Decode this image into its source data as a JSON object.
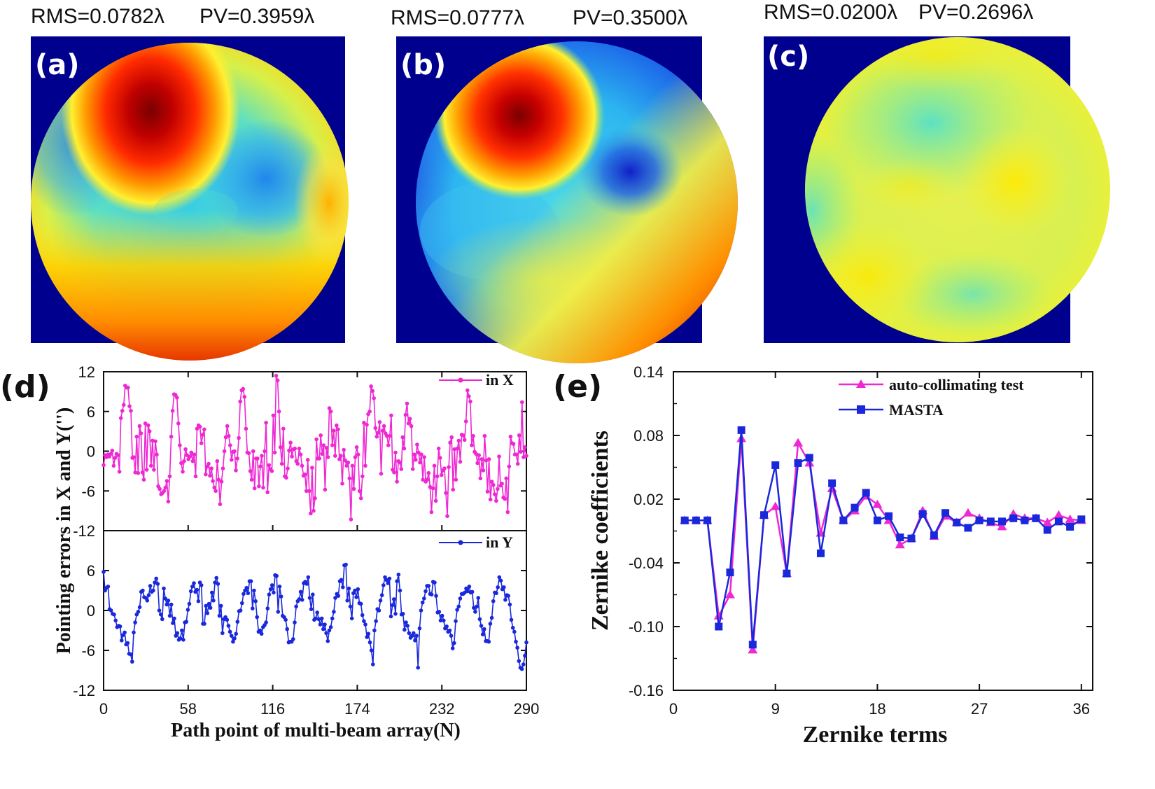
{
  "colors": {
    "magenta": "#ee28d2",
    "blue": "#1a28dc",
    "jet_background": "#00008f"
  },
  "wavefront_maps": [
    {
      "id": "a",
      "label": "(a)",
      "rms_text": "RMS=0.0782λ",
      "pv_text": "PV=0.3959λ",
      "colormap": "jet",
      "description": "wavefront error map panel a"
    },
    {
      "id": "b",
      "label": "(b)",
      "rms_text": "RMS=0.0777λ",
      "pv_text": "PV=0.3500λ",
      "colormap": "jet",
      "description": "wavefront error map panel b"
    },
    {
      "id": "c",
      "label": "(c)",
      "rms_text": "RMS=0.0200λ",
      "pv_text": "PV=0.2696λ",
      "colormap": "jet",
      "description": "wavefront error map panel c"
    }
  ],
  "chart_data": [
    {
      "id": "d",
      "panel_label": "(d)",
      "type": "line",
      "ylabel": "Pointing errors in X and Y('')",
      "xlabel": "Path point of multi-beam array(N)",
      "xlim": [
        0,
        290
      ],
      "x_ticks": [
        0,
        58,
        116,
        174,
        232,
        290
      ],
      "subplots": [
        {
          "name": "in X",
          "legend": "in X",
          "legend_position": "top-right",
          "color": "#ee28d2",
          "ylim": [
            -12,
            12
          ],
          "y_ticks": [
            12,
            6,
            0,
            -6,
            -12
          ],
          "values": [
            -2.1,
            -0.6,
            -0.9,
            -0.5,
            -0.8,
            -0.4,
            0.1,
            -2.2,
            -1.0,
            -0.4,
            -0.6,
            -3.1,
            5.0,
            6.1,
            7.0,
            9.9,
            9.6,
            9.6,
            6.8,
            6.1,
            -1.0,
            -0.9,
            -3.2,
            2.2,
            -3.3,
            3.8,
            2.7,
            -3.2,
            -4.3,
            4.2,
            -2.8,
            3.9,
            3.0,
            -2.2,
            1.6,
            -2.8,
            1.5,
            -0.5,
            -5.3,
            -5.7,
            -6.5,
            -6.3,
            -6.0,
            -5.5,
            -4.5,
            -7.6,
            -3.8,
            2.2,
            6.1,
            8.6,
            8.5,
            8.1,
            4.2,
            0.9,
            -1.8,
            -3.1,
            -1.5,
            0.3,
            -0.6,
            -1.2,
            -0.8,
            -0.2,
            -1.5,
            -0.5,
            -3.8,
            3.4,
            3.9,
            3.7,
            1.2,
            2.5,
            3.3,
            -3.5,
            -2.3,
            -1.9,
            -3.7,
            -2.6,
            -4.5,
            -5.5,
            -6.0,
            -1.5,
            -4.3,
            -8.0,
            -4.6,
            -2.6,
            0.0,
            2.1,
            3.8,
            2.3,
            0.9,
            -1.3,
            -0.1,
            0.0,
            -2.9,
            -1.1,
            2.0,
            7.5,
            9.2,
            9.4,
            8.2,
            3.4,
            -0.2,
            -0.3,
            -3.0,
            -4.3,
            0.0,
            -5.6,
            -1.1,
            -1.1,
            -5.3,
            -2.3,
            -0.7,
            -5.5,
            0.0,
            4.3,
            -6.2,
            -2.1,
            -2.7,
            -3.0,
            5.4,
            -0.2,
            11.4,
            10.7,
            6.0,
            0.6,
            -1.9,
            3.4,
            -3.8,
            -4.0,
            -2.6,
            0.1,
            1.3,
            -0.8,
            0.3,
            0.4,
            -1.5,
            -1.9,
            0.4,
            -0.5,
            -2.2,
            -3.7,
            -3.5,
            -6.0,
            -1.3,
            -6.0,
            -9.4,
            -2.5,
            -9.0,
            -7.1,
            1.8,
            -1.1,
            -1.1,
            2.4,
            -0.4,
            0.9,
            -5.8,
            0.5,
            -0.9,
            6.5,
            6.0,
            0.9,
            3.1,
            -0.7,
            3.9,
            3.3,
            -1.2,
            -0.7,
            -4.9,
            0.2,
            -1.4,
            -2.2,
            -1.7,
            -4.1,
            -10.3,
            -2.2,
            -5.7,
            -0.9,
            0.6,
            -0.5,
            -6.0,
            -7.1,
            -3.8,
            4.3,
            -2.2,
            4.0,
            5.6,
            6.0,
            9.8,
            9.1,
            8.0,
            3.5,
            2.2,
            2.8,
            4.4,
            -3.4,
            3.1,
            3.8,
            2.7,
            2.3,
            0.9,
            2.3,
            5.4,
            -2.8,
            -3.2,
            -0.2,
            -4.6,
            -1.5,
            -1.7,
            -2.7,
            2.1,
            0.4,
            5.5,
            7.2,
            4.2,
            4.9,
            3.8,
            -2.7,
            -0.5,
            -1.3,
            1.0,
            -0.2,
            -1.7,
            -0.5,
            -4.3,
            -0.9,
            -4.6,
            -4.3,
            -3.3,
            -5.4,
            -9.2,
            -5.6,
            -2.2,
            -7.5,
            -3.8,
            0.4,
            -1.0,
            -3.6,
            -2.9,
            -2.6,
            -6.3,
            -9.8,
            -2.4,
            1.3,
            2.1,
            -5.8,
            0.3,
            -4.3,
            0.4,
            1.6,
            -1.6,
            2.5,
            2.4,
            1.7,
            4.5,
            9.2,
            8.3,
            7.5,
            0.9,
            2.3,
            -0.1,
            -0.4,
            -1.8,
            -0.6,
            -4.1,
            -1.2,
            -2.9,
            2.3,
            -1.4,
            -6.1,
            -1.2,
            -7.3,
            -4.6,
            -5.1,
            -6.5,
            -7.5,
            -5.7,
            -0.8,
            -5.2,
            -4.9,
            -7.0,
            -7.2,
            -4.1,
            -9.2,
            -2.3,
            2.2,
            1.2,
            1.1,
            -0.5,
            -0.5,
            -1.9,
            2.4,
            -0.1,
            7.4,
            -0.9,
            0.6,
            -0.7
          ]
        },
        {
          "name": "in Y",
          "legend": "in Y",
          "legend_position": "top-right",
          "color": "#1a28dc",
          "ylim": [
            -12,
            12
          ],
          "y_ticks": [
            6,
            0,
            -6,
            -12
          ],
          "values": [
            5.8,
            3.0,
            3.4,
            3.6,
            0.2,
            0.0,
            -0.5,
            -0.6,
            -1.5,
            -2.5,
            -2.3,
            -2.4,
            -4.5,
            -3.7,
            -3.3,
            -5.1,
            -4.9,
            -6.5,
            -6.6,
            -7.7,
            -3.3,
            -1.8,
            -0.6,
            -0.2,
            0.5,
            2.8,
            3.0,
            2.0,
            1.9,
            1.5,
            2.3,
            3.7,
            2.8,
            3.0,
            4.2,
            4.8,
            4.0,
            0.0,
            -0.6,
            -1.3,
            3.3,
            1.8,
            0.9,
            1.5,
            -0.8,
            0.9,
            -1.9,
            -1.2,
            -3.8,
            -3.4,
            -4.4,
            -4.2,
            -3.0,
            -4.4,
            -1.8,
            -1.7,
            0.1,
            1.0,
            2.9,
            3.6,
            4.1,
            2.8,
            3.1,
            1.4,
            4.2,
            3.8,
            -2.0,
            -2.0,
            0.7,
            -0.4,
            1.0,
            0.4,
            2.7,
            1.5,
            4.2,
            4.9,
            4.0,
            -0.8,
            0.7,
            -3.4,
            -1.3,
            -1.0,
            -1.4,
            -2.3,
            -3.2,
            -3.8,
            -4.7,
            -4.2,
            -3.5,
            -1.7,
            -0.1,
            0.0,
            1.1,
            2.5,
            3.0,
            3.4,
            2.6,
            4.4,
            4.4,
            0.3,
            3.0,
            1.4,
            -1.0,
            -3.2,
            -3.0,
            -3.5,
            -2.5,
            -2.2,
            -1.8,
            0.3,
            2.4,
            3.2,
            3.8,
            2.7,
            5.3,
            5.2,
            -0.2,
            3.6,
            2.1,
            -0.8,
            -1.0,
            -1.4,
            -2.8,
            -4.8,
            -4.7,
            -4.7,
            -4.3,
            -1.8,
            0.6,
            1.4,
            1.7,
            2.8,
            1.6,
            4.1,
            4.3,
            4.0,
            5.0,
            1.9,
            0.2,
            2.4,
            -1.4,
            -1.2,
            -0.3,
            -1.3,
            -2.1,
            -1.2,
            -2.8,
            -2.1,
            -3.4,
            -4.6,
            -3.0,
            -2.5,
            -1.2,
            -0.2,
            1.9,
            2.5,
            2.2,
            4.4,
            4.6,
            3.5,
            6.8,
            6.9,
            1.5,
            3.3,
            0.6,
            -1.2,
            2.6,
            3.0,
            2.0,
            3.2,
            1.1,
            1.0,
            -0.7,
            -1.6,
            -2.1,
            -4.0,
            -3.5,
            -4.8,
            -6.0,
            -8.1,
            -3.0,
            -1.6,
            0.2,
            0.0,
            1.5,
            2.3,
            3.8,
            5.0,
            4.6,
            4.1,
            4.8,
            -0.9,
            0.8,
            1.7,
            -0.5,
            4.4,
            5.4,
            3.0,
            -0.6,
            -0.5,
            -2.9,
            -1.8,
            -2.3,
            -3.4,
            -4.1,
            -3.8,
            -3.4,
            -4.5,
            -3.8,
            -8.6,
            -2.7,
            0.0,
            1.2,
            1.8,
            2.9,
            3.7,
            3.7,
            2.5,
            2.4,
            4.3,
            4.2,
            2.2,
            -0.3,
            -0.2,
            -1.5,
            -0.8,
            -1.5,
            -2.7,
            -2.4,
            -3.2,
            -3.0,
            -3.8,
            -5.7,
            -4.9,
            -1.6,
            0.1,
            0.6,
            1.8,
            2.5,
            2.5,
            2.7,
            3.3,
            2.9,
            3.6,
            2.7,
            2.8,
            0.4,
            -0.2,
            0.6,
            1.9,
            -1.3,
            -2.3,
            -3.6,
            -2.8,
            -4.6,
            -4.6,
            -4.7,
            -2.0,
            -1.1,
            1.4,
            2.7,
            2.6,
            3.5,
            5.0,
            4.5,
            3.2,
            3.5,
            1.6,
            2.3,
            2.2,
            0.9,
            -1.4,
            -2.6,
            -3.2,
            -4.7,
            -5.6,
            -7.6,
            -8.6,
            -8.8,
            -8.1,
            -6.8,
            -4.8
          ]
        }
      ]
    },
    {
      "id": "e",
      "panel_label": "(e)",
      "type": "line",
      "title": "",
      "xlabel": "Zernike terms",
      "ylabel": "Zernike coefficients",
      "xlim": [
        0,
        37
      ],
      "ylim": [
        -0.16,
        0.14
      ],
      "x_ticks": [
        0,
        9,
        18,
        27,
        36
      ],
      "y_ticks": [
        0.14,
        0.08,
        0.02,
        -0.04,
        -0.1,
        -0.16
      ],
      "y_tick_labels": [
        "0.14",
        "0.08",
        "0.02",
        "-0.04",
        "-0.10",
        "-0.16"
      ],
      "legend_position": "top-right",
      "x": [
        1,
        2,
        3,
        4,
        5,
        6,
        7,
        8,
        9,
        10,
        11,
        12,
        13,
        14,
        15,
        16,
        17,
        18,
        19,
        20,
        21,
        22,
        23,
        24,
        25,
        26,
        27,
        28,
        29,
        30,
        31,
        32,
        33,
        34,
        35,
        36
      ],
      "series": [
        {
          "name": "auto-collimating test",
          "marker": "triangle",
          "color": "#ee28d2",
          "values": [
            0.0,
            0.0,
            0.0,
            -0.09,
            -0.07,
            0.077,
            -0.122,
            0.005,
            0.013,
            -0.05,
            0.073,
            0.054,
            -0.012,
            0.03,
            0.0,
            0.009,
            0.023,
            0.015,
            0.0,
            -0.023,
            -0.017,
            0.009,
            -0.015,
            0.004,
            -0.002,
            0.007,
            0.002,
            -0.002,
            -0.006,
            0.006,
            0.002,
            0.002,
            -0.002,
            0.005,
            0.001,
            0.0
          ]
        },
        {
          "name": "MASTA",
          "marker": "square",
          "color": "#1a28dc",
          "values": [
            0.0,
            0.0,
            0.0,
            -0.1,
            -0.049,
            0.085,
            -0.117,
            0.005,
            0.052,
            -0.05,
            0.054,
            0.059,
            -0.031,
            0.035,
            0.0,
            0.012,
            0.026,
            0.0,
            0.004,
            -0.016,
            -0.017,
            0.006,
            -0.014,
            0.007,
            -0.002,
            -0.007,
            0.0,
            -0.001,
            -0.001,
            0.002,
            0.0,
            0.002,
            -0.009,
            -0.001,
            -0.006,
            0.001
          ]
        }
      ]
    }
  ]
}
